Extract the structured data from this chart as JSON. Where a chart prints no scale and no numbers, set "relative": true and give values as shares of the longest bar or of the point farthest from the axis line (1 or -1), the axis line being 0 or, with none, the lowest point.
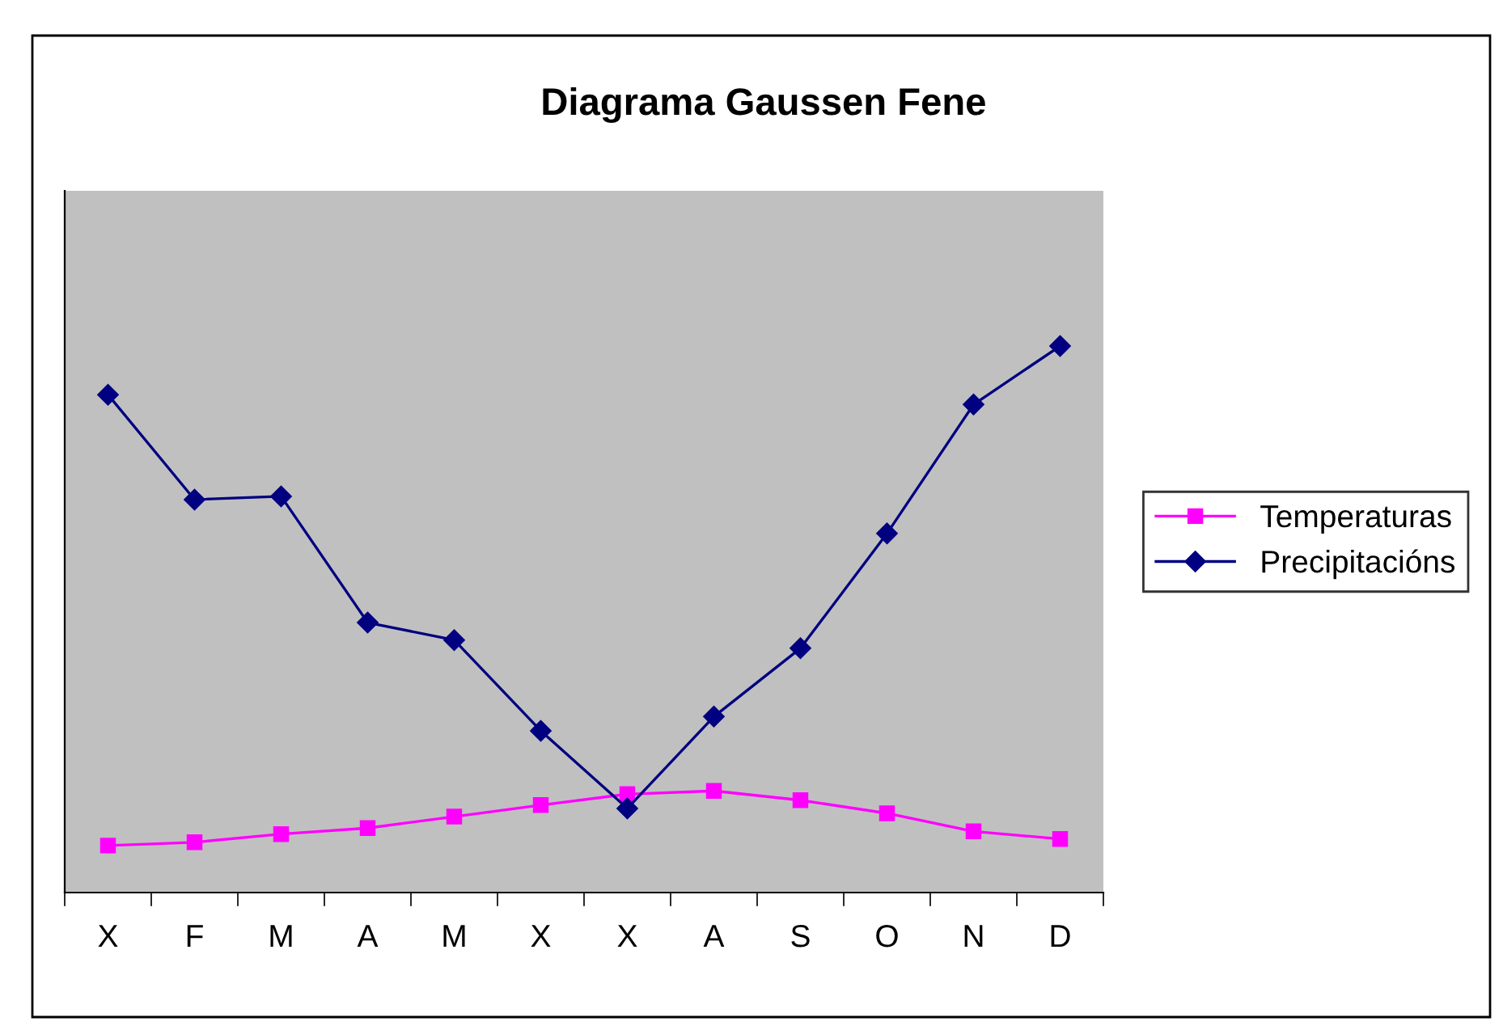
{
  "chart_data": {
    "type": "line",
    "title": "Diagrama Gaussen Fene",
    "relative": true,
    "legend": "right",
    "grid": false,
    "categories": [
      "X",
      "F",
      "M",
      "A",
      "M",
      "X",
      "X",
      "A",
      "S",
      "O",
      "N",
      "D"
    ],
    "series": [
      {
        "name": "Temperaturas",
        "color": "#ff00ff",
        "marker": "square",
        "values": [
          0.086,
          0.092,
          0.107,
          0.118,
          0.139,
          0.16,
          0.18,
          0.186,
          0.169,
          0.145,
          0.112,
          0.098
        ]
      },
      {
        "name": "Precipitacións",
        "color": "#000080",
        "marker": "diamond",
        "values": [
          0.911,
          0.719,
          0.725,
          0.494,
          0.462,
          0.296,
          0.154,
          0.322,
          0.447,
          0.657,
          0.893,
          1
        ]
      }
    ]
  }
}
